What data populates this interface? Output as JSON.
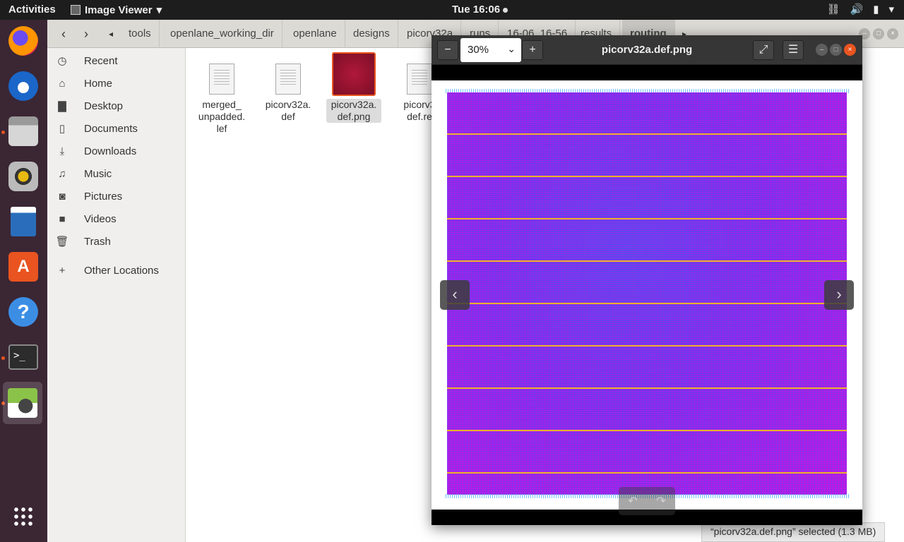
{
  "topbar": {
    "activities": "Activities",
    "app_name": "Image Viewer",
    "clock": "Tue 16:06"
  },
  "dock": {
    "items": [
      {
        "name": "firefox",
        "running": false
      },
      {
        "name": "thunderbird",
        "running": false
      },
      {
        "name": "files",
        "running": true
      },
      {
        "name": "rhythmbox",
        "running": false
      },
      {
        "name": "libreoffice-writer",
        "running": false
      },
      {
        "name": "ubuntu-software",
        "running": false
      },
      {
        "name": "help",
        "running": false
      },
      {
        "name": "terminal",
        "running": true
      },
      {
        "name": "image-viewer",
        "running": true
      },
      {
        "name": "show-applications",
        "running": false
      }
    ]
  },
  "files": {
    "breadcrumbs": [
      "tools",
      "openlane_working_dir",
      "openlane",
      "designs",
      "picorv32a",
      "runs",
      "16-06_16-56",
      "results",
      "routing"
    ],
    "sidebar": [
      {
        "label": "Recent",
        "icon": "clock-icon"
      },
      {
        "label": "Home",
        "icon": "home-icon"
      },
      {
        "label": "Desktop",
        "icon": "folder-icon"
      },
      {
        "label": "Documents",
        "icon": "document-icon"
      },
      {
        "label": "Downloads",
        "icon": "download-icon"
      },
      {
        "label": "Music",
        "icon": "music-icon"
      },
      {
        "label": "Pictures",
        "icon": "camera-icon"
      },
      {
        "label": "Videos",
        "icon": "video-icon"
      },
      {
        "label": "Trash",
        "icon": "trash-icon"
      },
      {
        "label": "Other Locations",
        "icon": "plus-icon"
      }
    ],
    "items": [
      {
        "lines": [
          "merged_",
          "unpadded.",
          "lef"
        ]
      },
      {
        "lines": [
          "picorv32a.",
          "def"
        ]
      },
      {
        "lines": [
          "picorv32a.",
          "def.png"
        ]
      },
      {
        "lines": [
          "picorv3",
          "def.re"
        ]
      }
    ],
    "status": "“picorv32a.def.png” selected  (1.3 MB)"
  },
  "viewer": {
    "title": "picorv32a.def.png",
    "zoom": "30%"
  }
}
